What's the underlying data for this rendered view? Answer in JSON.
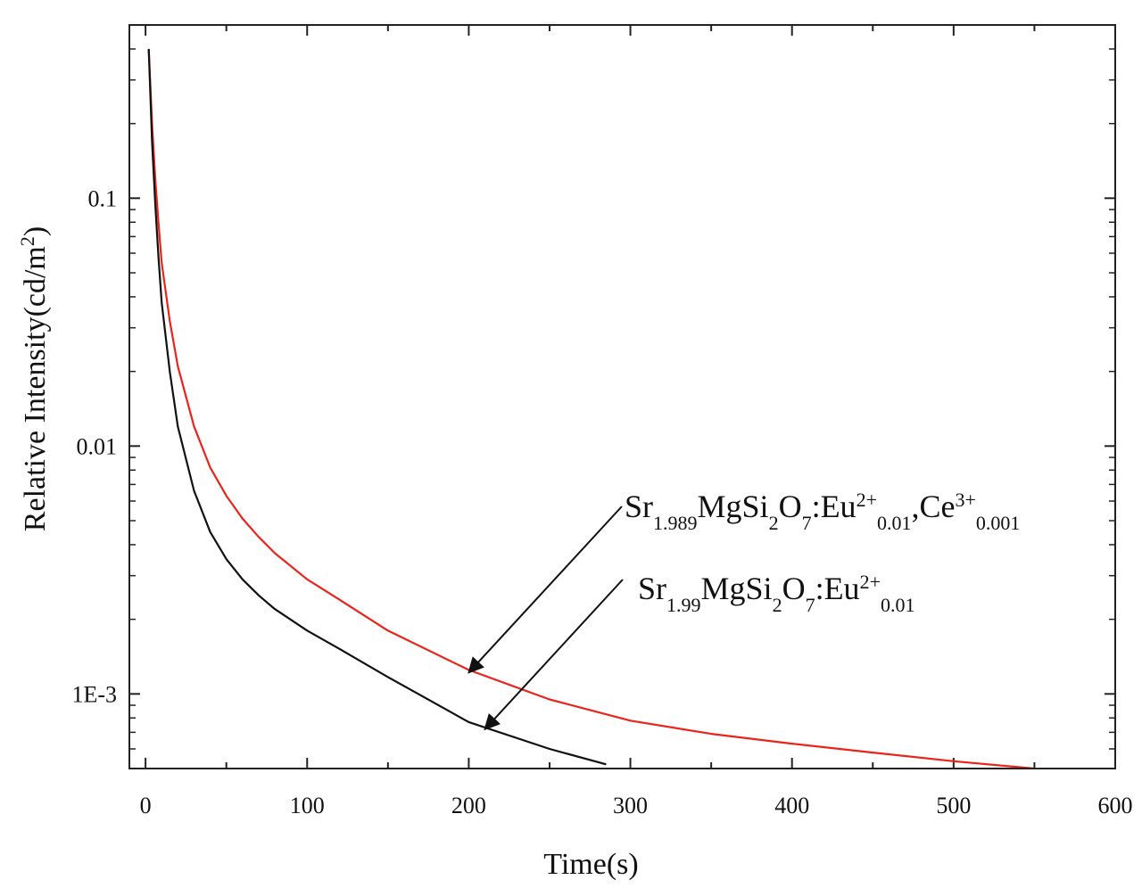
{
  "chart_data": {
    "type": "line",
    "xlabel": "Time(s)",
    "ylabel_parts": {
      "base": "Relative Intensity(cd/m",
      "sup": "2",
      "end": ")"
    },
    "xlim": [
      -10,
      600
    ],
    "ylim": [
      0.0005,
      0.5
    ],
    "yscale": "log",
    "grid": false,
    "x_ticks": [
      0,
      100,
      200,
      300,
      400,
      500,
      600
    ],
    "x_tick_labels": [
      "0",
      "100",
      "200",
      "300",
      "400",
      "500",
      "600"
    ],
    "y_ticks": [
      0.1,
      0.01,
      0.001
    ],
    "y_tick_labels": [
      "0.1",
      "0.01",
      "1E-3"
    ],
    "series": [
      {
        "color": "#e8241c",
        "x": [
          2,
          4,
          6,
          8,
          10,
          15,
          20,
          30,
          40,
          50,
          60,
          70,
          80,
          100,
          120,
          150,
          200,
          250,
          300,
          350,
          400,
          450,
          500,
          550
        ],
        "y": [
          0.4,
          0.2,
          0.12,
          0.08,
          0.055,
          0.032,
          0.021,
          0.012,
          0.0082,
          0.0063,
          0.0051,
          0.0043,
          0.0037,
          0.0029,
          0.0024,
          0.0018,
          0.00125,
          0.00095,
          0.00078,
          0.00069,
          0.00063,
          0.00058,
          0.000535,
          0.0005
        ]
      },
      {
        "color": "#111111",
        "x": [
          2,
          4,
          6,
          8,
          10,
          15,
          20,
          30,
          40,
          50,
          60,
          70,
          80,
          100,
          120,
          150,
          200,
          250,
          285
        ],
        "y": [
          0.4,
          0.17,
          0.095,
          0.058,
          0.038,
          0.02,
          0.012,
          0.0066,
          0.0045,
          0.0035,
          0.0029,
          0.0025,
          0.0022,
          0.0018,
          0.00152,
          0.00117,
          0.00077,
          0.0006,
          0.00052
        ]
      }
    ],
    "annotations": [
      {
        "parts": [
          {
            "t": "Sr",
            "s": ""
          },
          {
            "t": "1.989",
            "s": "sub"
          },
          {
            "t": "MgSi",
            "s": ""
          },
          {
            "t": "2",
            "s": "sub"
          },
          {
            "t": "O",
            "s": ""
          },
          {
            "t": "7",
            "s": "sub"
          },
          {
            "t": ":Eu",
            "s": ""
          },
          {
            "t": "2+",
            "s": "sup"
          },
          {
            "t": "0.01",
            "s": "sub"
          },
          {
            "t": ",Ce",
            "s": ""
          },
          {
            "t": "3+",
            "s": "sup"
          },
          {
            "t": "0.001",
            "s": "sub"
          }
        ],
        "arrow_to": [
          200,
          0.00122
        ]
      },
      {
        "parts": [
          {
            "t": "Sr",
            "s": ""
          },
          {
            "t": "1.99",
            "s": "sub"
          },
          {
            "t": "MgSi",
            "s": ""
          },
          {
            "t": "2",
            "s": "sub"
          },
          {
            "t": "O",
            "s": ""
          },
          {
            "t": "7",
            "s": "sub"
          },
          {
            "t": ":Eu",
            "s": ""
          },
          {
            "t": "2+",
            "s": "sup"
          },
          {
            "t": "0.01",
            "s": "sub"
          }
        ],
        "arrow_to": [
          210,
          0.00072
        ]
      }
    ]
  }
}
